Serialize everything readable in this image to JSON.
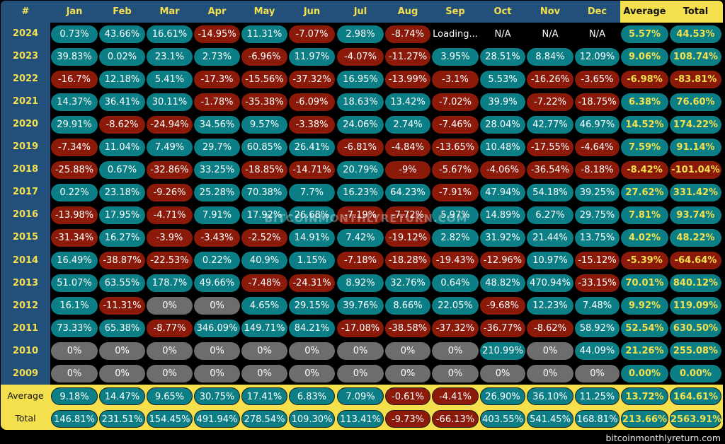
{
  "chart_data": {
    "type": "table",
    "corner_label": "#",
    "columns": [
      "Jan",
      "Feb",
      "Mar",
      "Apr",
      "May",
      "Jun",
      "Jul",
      "Aug",
      "Sep",
      "Oct",
      "Nov",
      "Dec",
      "Average",
      "Total"
    ],
    "rows": [
      {
        "year": "2024",
        "values": [
          "0.73%",
          "43.66%",
          "16.61%",
          "-14.95%",
          "11.31%",
          "-7.07%",
          "2.98%",
          "-8.74%",
          "Loading...",
          "N/A",
          "N/A",
          "N/A",
          "5.57%",
          "44.53%"
        ]
      },
      {
        "year": "2023",
        "values": [
          "39.83%",
          "0.02%",
          "23.1%",
          "2.73%",
          "-6.96%",
          "11.97%",
          "-4.07%",
          "-11.27%",
          "3.95%",
          "28.51%",
          "8.84%",
          "12.09%",
          "9.06%",
          "108.74%"
        ]
      },
      {
        "year": "2022",
        "values": [
          "-16.7%",
          "12.18%",
          "5.41%",
          "-17.3%",
          "-15.56%",
          "-37.32%",
          "16.95%",
          "-13.99%",
          "-3.1%",
          "5.53%",
          "-16.26%",
          "-3.65%",
          "-6.98%",
          "-83.81%"
        ]
      },
      {
        "year": "2021",
        "values": [
          "14.37%",
          "36.41%",
          "30.11%",
          "-1.78%",
          "-35.38%",
          "-6.09%",
          "18.63%",
          "13.42%",
          "-7.02%",
          "39.9%",
          "-7.22%",
          "-18.75%",
          "6.38%",
          "76.60%"
        ]
      },
      {
        "year": "2020",
        "values": [
          "29.91%",
          "-8.62%",
          "-24.94%",
          "34.56%",
          "9.57%",
          "-3.38%",
          "24.06%",
          "2.74%",
          "-7.46%",
          "28.04%",
          "42.77%",
          "46.97%",
          "14.52%",
          "174.22%"
        ]
      },
      {
        "year": "2019",
        "values": [
          "-7.34%",
          "11.04%",
          "7.49%",
          "29.7%",
          "60.85%",
          "26.41%",
          "-6.81%",
          "-4.84%",
          "-13.65%",
          "10.48%",
          "-17.55%",
          "-4.64%",
          "7.59%",
          "91.14%"
        ]
      },
      {
        "year": "2018",
        "values": [
          "-25.88%",
          "0.67%",
          "-32.86%",
          "33.25%",
          "-18.85%",
          "-14.71%",
          "20.79%",
          "-9%",
          "-5.67%",
          "-4.06%",
          "-36.54%",
          "-8.18%",
          "-8.42%",
          "-101.04%"
        ]
      },
      {
        "year": "2017",
        "values": [
          "0.22%",
          "23.18%",
          "-9.26%",
          "25.28%",
          "70.38%",
          "7.7%",
          "16.23%",
          "64.23%",
          "-7.91%",
          "47.94%",
          "54.18%",
          "39.25%",
          "27.62%",
          "331.42%"
        ]
      },
      {
        "year": "2016",
        "values": [
          "-13.98%",
          "17.95%",
          "-4.71%",
          "7.91%",
          "17.92%",
          "26.68%",
          "-7.19%",
          "-7.72%",
          "5.97%",
          "14.89%",
          "6.27%",
          "29.75%",
          "7.81%",
          "93.74%"
        ]
      },
      {
        "year": "2015",
        "values": [
          "-31.34%",
          "16.27%",
          "-3.9%",
          "-3.43%",
          "-2.52%",
          "14.91%",
          "7.42%",
          "-19.12%",
          "2.82%",
          "31.92%",
          "21.44%",
          "13.75%",
          "4.02%",
          "48.22%"
        ]
      },
      {
        "year": "2014",
        "values": [
          "16.49%",
          "-38.87%",
          "-22.53%",
          "0.22%",
          "40.9%",
          "1.15%",
          "-7.18%",
          "-18.28%",
          "-19.43%",
          "-12.96%",
          "10.97%",
          "-15.12%",
          "-5.39%",
          "-64.64%"
        ]
      },
      {
        "year": "2013",
        "values": [
          "51.07%",
          "63.55%",
          "178.7%",
          "49.66%",
          "-7.48%",
          "-24.31%",
          "8.92%",
          "32.76%",
          "0.64%",
          "48.82%",
          "470.94%",
          "-33.15%",
          "70.01%",
          "840.12%"
        ]
      },
      {
        "year": "2012",
        "values": [
          "16.1%",
          "-11.31%",
          "0%",
          "0%",
          "4.65%",
          "29.15%",
          "39.76%",
          "8.66%",
          "22.05%",
          "-9.68%",
          "12.23%",
          "7.48%",
          "9.92%",
          "119.09%"
        ]
      },
      {
        "year": "2011",
        "values": [
          "73.33%",
          "65.38%",
          "-8.77%",
          "346.09%",
          "149.71%",
          "84.21%",
          "-17.08%",
          "-38.58%",
          "-37.32%",
          "-36.77%",
          "-8.62%",
          "58.92%",
          "52.54%",
          "630.50%"
        ]
      },
      {
        "year": "2010",
        "values": [
          "0%",
          "0%",
          "0%",
          "0%",
          "0%",
          "0%",
          "0%",
          "0%",
          "0%",
          "210.99%",
          "0%",
          "44.09%",
          "21.26%",
          "255.08%"
        ]
      },
      {
        "year": "2009",
        "values": [
          "0%",
          "0%",
          "0%",
          "0%",
          "0%",
          "0%",
          "0%",
          "0%",
          "0%",
          "0%",
          "0%",
          "0%",
          "0.00%",
          "0.00%"
        ]
      }
    ],
    "footer_rows": [
      {
        "label": "Average",
        "values": [
          "9.18%",
          "14.47%",
          "9.65%",
          "30.75%",
          "17.41%",
          "6.83%",
          "7.09%",
          "-0.61%",
          "-4.41%",
          "26.90%",
          "36.10%",
          "11.25%",
          "13.72%",
          "164.61%"
        ]
      },
      {
        "label": "Total",
        "values": [
          "146.81%",
          "231.51%",
          "154.45%",
          "491.94%",
          "278.54%",
          "109.30%",
          "113.41%",
          "-9.73%",
          "-66.13%",
          "403.55%",
          "541.45%",
          "168.81%",
          "213.66%",
          "2563.91%"
        ]
      }
    ],
    "colors": {
      "positive": "#0b7e86",
      "negative": "#8b1a0a",
      "zero": "#6d6d6d",
      "header_bg": "#23507a",
      "accent_yellow": "#f4e04d"
    }
  },
  "watermark": "BITCOINMONTHLYRETURN.COM",
  "site": "bitcoinmonthlyreturn.com"
}
